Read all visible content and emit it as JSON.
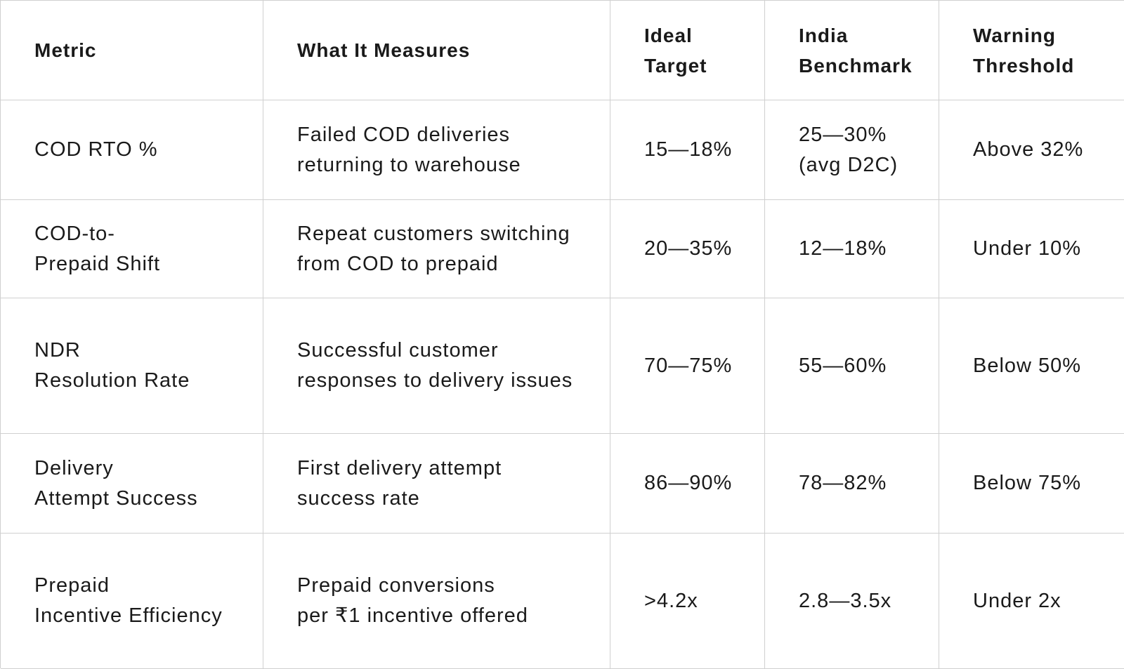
{
  "table": {
    "header": [
      [
        "Metric"
      ],
      [
        "What It Measures"
      ],
      [
        "Ideal",
        "Target"
      ],
      [
        "India",
        "Benchmark"
      ],
      [
        "Warning",
        "Threshold"
      ]
    ],
    "rows": [
      [
        [
          "COD RTO %"
        ],
        [
          "Failed COD deliveries",
          "returning to warehouse"
        ],
        [
          "15—18%"
        ],
        [
          "25—30%",
          "(avg D2C)"
        ],
        [
          "Above 32%"
        ]
      ],
      [
        [
          "COD-to-",
          "Prepaid Shift"
        ],
        [
          "Repeat customers switching",
          "from COD to prepaid"
        ],
        [
          "20—35%"
        ],
        [
          "12—18%"
        ],
        [
          "Under 10%"
        ]
      ],
      [
        [
          "NDR",
          "Resolution Rate"
        ],
        [
          "Successful customer",
          "responses to delivery issues"
        ],
        [
          "70—75%"
        ],
        [
          "55—60%"
        ],
        [
          "Below 50%"
        ]
      ],
      [
        [
          "Delivery",
          "Attempt Success"
        ],
        [
          "First delivery attempt",
          "success rate"
        ],
        [
          "86—90%"
        ],
        [
          "78—82%"
        ],
        [
          "Below 75%"
        ]
      ],
      [
        [
          "Prepaid",
          "Incentive Efficiency"
        ],
        [
          "Prepaid conversions",
          "per ₹1 incentive offered"
        ],
        [
          ">4.2x"
        ],
        [
          "2.8—3.5x"
        ],
        [
          "Under 2x"
        ]
      ]
    ]
  }
}
